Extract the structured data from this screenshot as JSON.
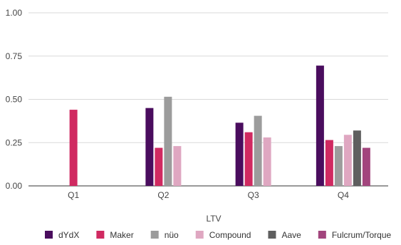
{
  "chart_data": {
    "type": "bar",
    "categories": [
      "Q1",
      "Q2",
      "Q3",
      "Q4"
    ],
    "series": [
      {
        "name": "dYdX",
        "color": "#4a0d5e",
        "values": [
          0,
          0.45,
          0.365,
          0.695
        ]
      },
      {
        "name": "Maker",
        "color": "#d02a61",
        "values": [
          0.44,
          0.22,
          0.31,
          0.265
        ]
      },
      {
        "name": "nüo",
        "color": "#9c9c9c",
        "values": [
          0,
          0.515,
          0.405,
          0.23
        ]
      },
      {
        "name": "Compound",
        "color": "#dfa7c1",
        "values": [
          0,
          0.23,
          0.28,
          0.295
        ]
      },
      {
        "name": "Aave",
        "color": "#5f5f5f",
        "values": [
          0,
          0,
          0,
          0.32
        ]
      },
      {
        "name": "Fulcrum/Torque",
        "color": "#a2457d",
        "values": [
          0,
          0,
          0,
          0.22
        ]
      }
    ],
    "xlabel": "LTV",
    "ylabel": "",
    "ylim": [
      0,
      1.0
    ],
    "yticks": [
      "0.00",
      "0.25",
      "0.50",
      "0.75",
      "1.00"
    ],
    "grid": true,
    "legend_position": "bottom"
  }
}
